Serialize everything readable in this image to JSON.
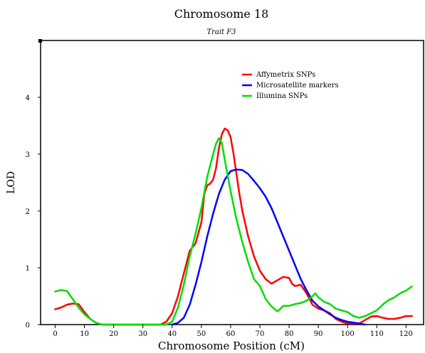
{
  "chart_data": {
    "type": "line",
    "title": "Chromosome 18",
    "subtitle": "Trait  F3",
    "xlabel": "Chromosome Position (cM)",
    "ylabel": "LOD",
    "xlim": [
      -5,
      126
    ],
    "ylim": [
      0,
      5
    ],
    "xticks": [
      0,
      10,
      20,
      30,
      40,
      50,
      60,
      70,
      80,
      90,
      100,
      110,
      120
    ],
    "yticks": [
      0,
      1,
      2,
      3,
      4
    ],
    "legend_position": "top-right",
    "grid": false,
    "series": [
      {
        "name": "Affymetrix SNPs",
        "color": "#ff0000",
        "points": [
          [
            0,
            0.27
          ],
          [
            2,
            0.3
          ],
          [
            4,
            0.35
          ],
          [
            6,
            0.37
          ],
          [
            8,
            0.36
          ],
          [
            10,
            0.22
          ],
          [
            12,
            0.1
          ],
          [
            14,
            0.03
          ],
          [
            16,
            0.0
          ],
          [
            20,
            0.0
          ],
          [
            30,
            0.0
          ],
          [
            36,
            0.0
          ],
          [
            38,
            0.05
          ],
          [
            40,
            0.2
          ],
          [
            42,
            0.5
          ],
          [
            44,
            0.9
          ],
          [
            46,
            1.3
          ],
          [
            48,
            1.43
          ],
          [
            50,
            1.8
          ],
          [
            51,
            2.3
          ],
          [
            52,
            2.45
          ],
          [
            53,
            2.48
          ],
          [
            54,
            2.55
          ],
          [
            55,
            2.75
          ],
          [
            56,
            3.1
          ],
          [
            57,
            3.35
          ],
          [
            58,
            3.45
          ],
          [
            59,
            3.42
          ],
          [
            60,
            3.3
          ],
          [
            61,
            3.0
          ],
          [
            62,
            2.65
          ],
          [
            63,
            2.3
          ],
          [
            64,
            2.0
          ],
          [
            66,
            1.55
          ],
          [
            68,
            1.2
          ],
          [
            70,
            0.95
          ],
          [
            72,
            0.8
          ],
          [
            74,
            0.72
          ],
          [
            76,
            0.78
          ],
          [
            78,
            0.84
          ],
          [
            80,
            0.82
          ],
          [
            81,
            0.72
          ],
          [
            82,
            0.68
          ],
          [
            84,
            0.7
          ],
          [
            86,
            0.55
          ],
          [
            88,
            0.35
          ],
          [
            90,
            0.28
          ],
          [
            92,
            0.25
          ],
          [
            94,
            0.2
          ],
          [
            96,
            0.1
          ],
          [
            98,
            0.05
          ],
          [
            100,
            0.02
          ],
          [
            104,
            0.02
          ],
          [
            106,
            0.08
          ],
          [
            108,
            0.14
          ],
          [
            110,
            0.15
          ],
          [
            112,
            0.12
          ],
          [
            114,
            0.1
          ],
          [
            116,
            0.1
          ],
          [
            118,
            0.12
          ],
          [
            120,
            0.15
          ],
          [
            122,
            0.15
          ]
        ]
      },
      {
        "name": "Microsatellite markers",
        "color": "#0000ff",
        "points": [
          [
            40,
            0.0
          ],
          [
            42,
            0.03
          ],
          [
            44,
            0.12
          ],
          [
            46,
            0.35
          ],
          [
            48,
            0.7
          ],
          [
            50,
            1.1
          ],
          [
            52,
            1.55
          ],
          [
            54,
            1.95
          ],
          [
            56,
            2.3
          ],
          [
            58,
            2.55
          ],
          [
            60,
            2.7
          ],
          [
            62,
            2.73
          ],
          [
            64,
            2.72
          ],
          [
            66,
            2.65
          ],
          [
            68,
            2.53
          ],
          [
            70,
            2.4
          ],
          [
            72,
            2.25
          ],
          [
            74,
            2.05
          ],
          [
            76,
            1.8
          ],
          [
            78,
            1.55
          ],
          [
            80,
            1.3
          ],
          [
            82,
            1.05
          ],
          [
            84,
            0.8
          ],
          [
            86,
            0.6
          ],
          [
            88,
            0.42
          ],
          [
            90,
            0.32
          ],
          [
            92,
            0.25
          ],
          [
            94,
            0.18
          ],
          [
            96,
            0.12
          ],
          [
            98,
            0.08
          ],
          [
            100,
            0.05
          ],
          [
            104,
            0.02
          ],
          [
            106,
            0.0
          ]
        ]
      },
      {
        "name": "Illumina SNPs",
        "color": "#00dd00",
        "points": [
          [
            0,
            0.58
          ],
          [
            2,
            0.61
          ],
          [
            4,
            0.59
          ],
          [
            6,
            0.45
          ],
          [
            8,
            0.3
          ],
          [
            10,
            0.18
          ],
          [
            12,
            0.1
          ],
          [
            14,
            0.03
          ],
          [
            16,
            0.0
          ],
          [
            20,
            0.0
          ],
          [
            30,
            0.0
          ],
          [
            38,
            0.0
          ],
          [
            40,
            0.05
          ],
          [
            42,
            0.3
          ],
          [
            44,
            0.7
          ],
          [
            46,
            1.2
          ],
          [
            48,
            1.6
          ],
          [
            50,
            2.05
          ],
          [
            52,
            2.6
          ],
          [
            54,
            3.0
          ],
          [
            55,
            3.18
          ],
          [
            56,
            3.28
          ],
          [
            57,
            3.2
          ],
          [
            58,
            2.9
          ],
          [
            60,
            2.35
          ],
          [
            62,
            1.85
          ],
          [
            64,
            1.45
          ],
          [
            66,
            1.1
          ],
          [
            68,
            0.8
          ],
          [
            70,
            0.68
          ],
          [
            72,
            0.45
          ],
          [
            74,
            0.32
          ],
          [
            76,
            0.23
          ],
          [
            78,
            0.33
          ],
          [
            80,
            0.33
          ],
          [
            82,
            0.36
          ],
          [
            84,
            0.38
          ],
          [
            86,
            0.42
          ],
          [
            88,
            0.5
          ],
          [
            89,
            0.55
          ],
          [
            90,
            0.48
          ],
          [
            92,
            0.4
          ],
          [
            94,
            0.36
          ],
          [
            96,
            0.28
          ],
          [
            98,
            0.25
          ],
          [
            100,
            0.22
          ],
          [
            102,
            0.15
          ],
          [
            104,
            0.12
          ],
          [
            106,
            0.15
          ],
          [
            108,
            0.2
          ],
          [
            110,
            0.25
          ],
          [
            112,
            0.35
          ],
          [
            114,
            0.43
          ],
          [
            116,
            0.48
          ],
          [
            118,
            0.55
          ],
          [
            120,
            0.6
          ],
          [
            122,
            0.67
          ]
        ]
      }
    ]
  }
}
